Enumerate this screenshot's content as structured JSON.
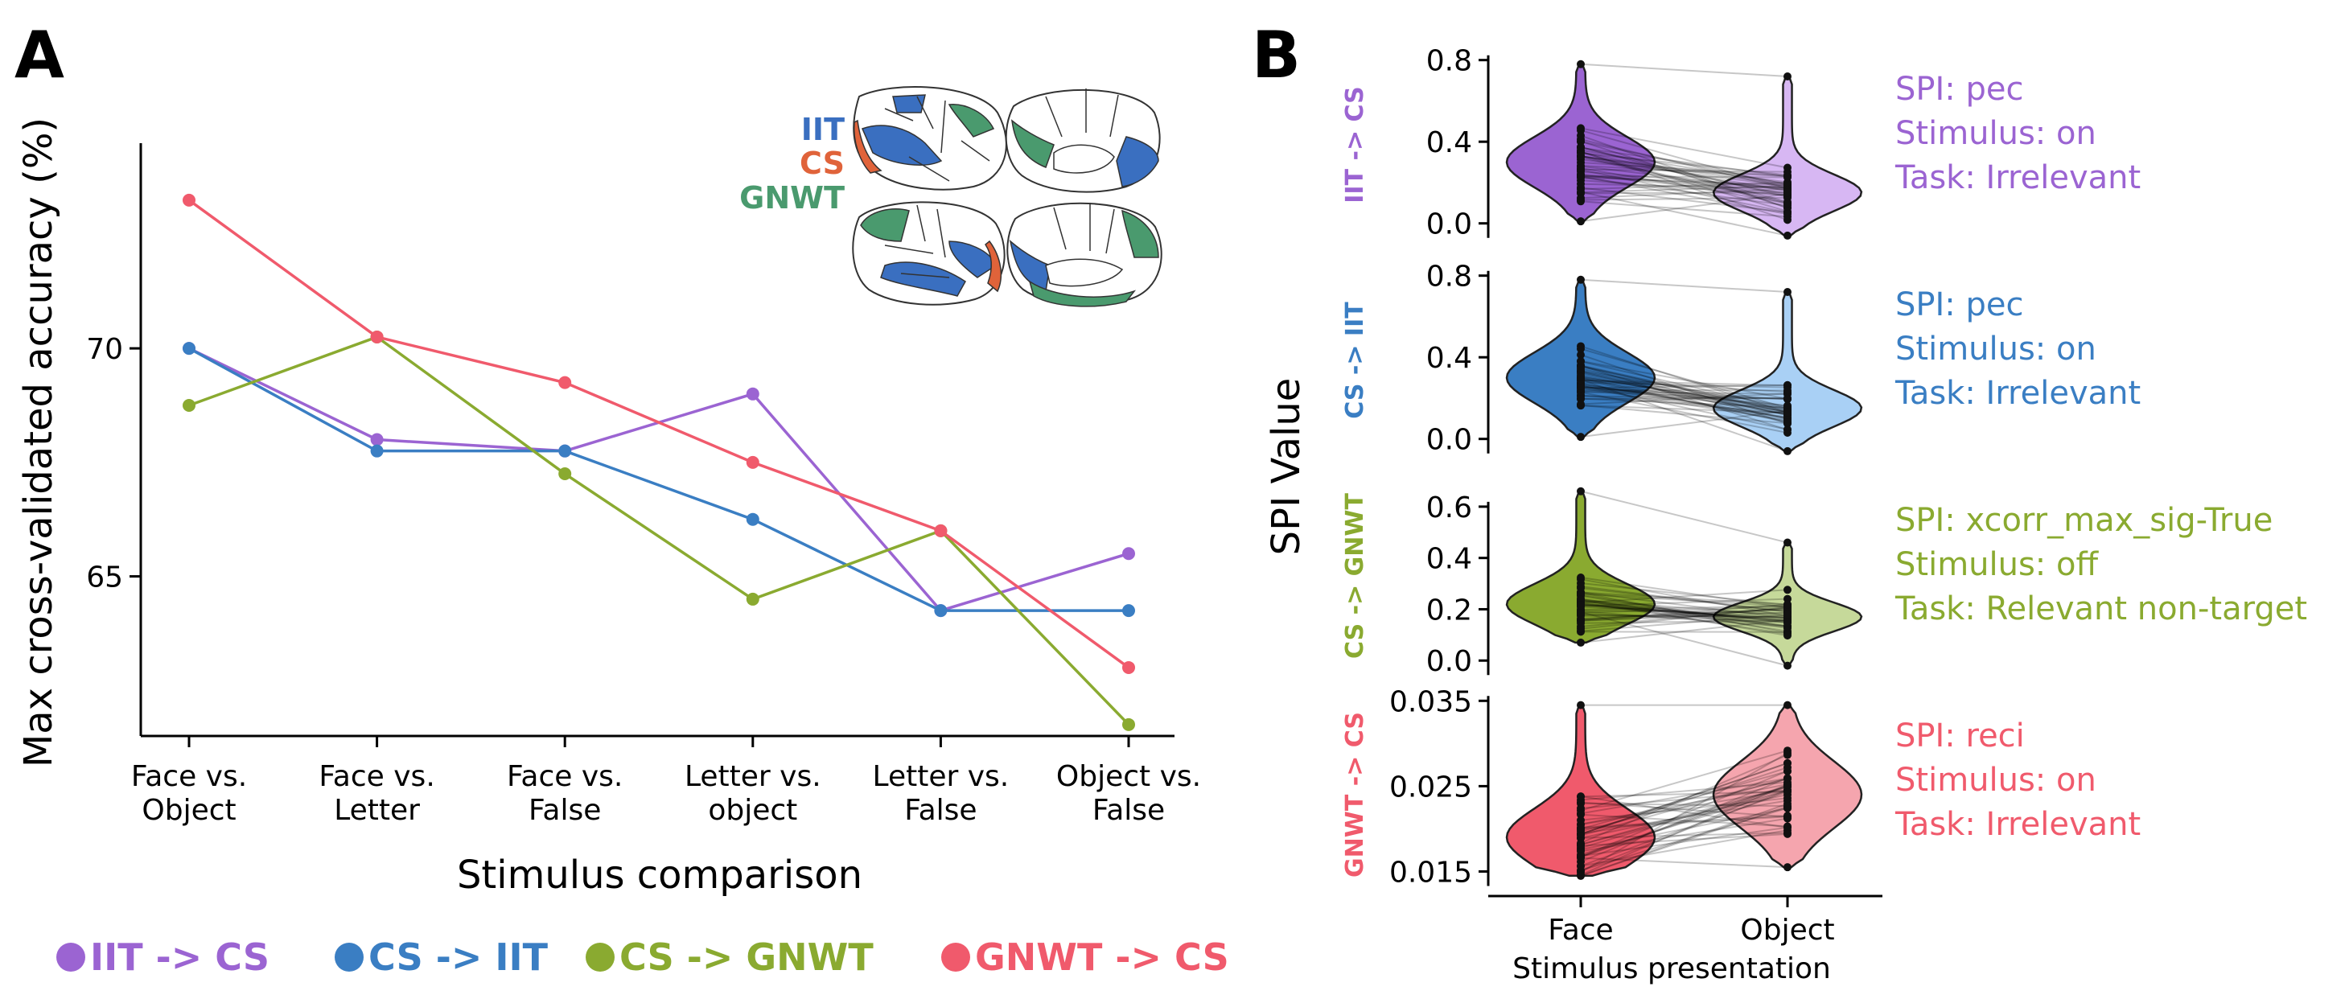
{
  "panels": {
    "a": "A",
    "b": "B"
  },
  "colors": {
    "iit_cs": "#9b64d2",
    "cs_iit": "#3a7ec3",
    "cs_gnwt": "#8aaa30",
    "gnwt_cs": "#f05a6c"
  },
  "brain_legend": [
    {
      "label": "IIT",
      "color": "#3a6fc0"
    },
    {
      "label": "CS",
      "color": "#e0633a"
    },
    {
      "label": "GNWT",
      "color": "#4a9a6e"
    }
  ],
  "chart_data": [
    {
      "type": "line",
      "panel": "A",
      "xlabel": "Stimulus comparison",
      "ylabel": "Max cross-validated accuracy (%)",
      "categories": [
        [
          "Face vs.",
          "Object"
        ],
        [
          "Face vs.",
          "Letter"
        ],
        [
          "Face vs.",
          "False"
        ],
        [
          "Letter vs.",
          "object"
        ],
        [
          "Letter vs.",
          "False"
        ],
        [
          "Object vs.",
          "False"
        ]
      ],
      "ylim": [
        61.5,
        74.5
      ],
      "yticks": [
        65,
        70
      ],
      "series": [
        {
          "name": "IIT -> CS",
          "color": "#9b64d2",
          "values": [
            70.0,
            68.0,
            67.75,
            69.0,
            64.25,
            65.5
          ]
        },
        {
          "name": "CS -> IIT",
          "color": "#3a7ec3",
          "values": [
            70.0,
            67.75,
            67.75,
            66.25,
            64.25,
            64.25
          ]
        },
        {
          "name": "CS -> GNWT",
          "color": "#8aaa30",
          "values": [
            68.75,
            70.25,
            67.25,
            64.5,
            66.0,
            61.75
          ]
        },
        {
          "name": "GNWT -> CS",
          "color": "#f05a6c",
          "values": [
            73.25,
            70.25,
            69.25,
            67.5,
            66.0,
            63.0
          ]
        }
      ],
      "legend": [
        "IIT -> CS",
        "CS -> IIT",
        "CS -> GNWT",
        "GNWT -> CS"
      ],
      "legend_position": "bottom"
    },
    {
      "type": "violin",
      "panel": "B",
      "ylabel": "SPI Value",
      "xlabel": "Stimulus presentation",
      "categories": [
        "Face",
        "Object"
      ],
      "rows": [
        {
          "name": "IIT -> CS",
          "color": "#9b64d2",
          "light": "#d7b7f3",
          "ylim": [
            -0.08,
            0.85
          ],
          "yticks": [
            "0.0",
            "0.4",
            "0.8"
          ],
          "ytick_values": [
            0.0,
            0.4,
            0.8
          ],
          "face": {
            "min": 0.01,
            "max": 0.78,
            "peak": 0.3,
            "spread": 0.22
          },
          "object": {
            "min": -0.06,
            "max": 0.72,
            "peak": 0.15,
            "spread": 0.16
          },
          "info": [
            "SPI: pec",
            "Stimulus: on",
            "Task: Irrelevant"
          ]
        },
        {
          "name": "CS -> IIT",
          "color": "#3a7ec3",
          "light": "#a9d0f5",
          "ylim": [
            -0.08,
            0.85
          ],
          "yticks": [
            "0.0",
            "0.4",
            "0.8"
          ],
          "ytick_values": [
            0.0,
            0.4,
            0.8
          ],
          "face": {
            "min": 0.01,
            "max": 0.78,
            "peak": 0.3,
            "spread": 0.22
          },
          "object": {
            "min": -0.06,
            "max": 0.72,
            "peak": 0.15,
            "spread": 0.16
          },
          "info": [
            "SPI: pec",
            "Stimulus: on",
            "Task: Irrelevant"
          ]
        },
        {
          "name": "CS -> GNWT",
          "color": "#8aaa30",
          "light": "#c6d99a",
          "ylim": [
            -0.04,
            0.7
          ],
          "yticks": [
            "0.0",
            "0.2",
            "0.4",
            "0.6"
          ],
          "ytick_values": [
            0.0,
            0.2,
            0.4,
            0.6
          ],
          "face": {
            "min": 0.07,
            "max": 0.66,
            "peak": 0.22,
            "spread": 0.14
          },
          "object": {
            "min": -0.02,
            "max": 0.46,
            "peak": 0.17,
            "spread": 0.1
          },
          "info": [
            "SPI: xcorr_max_sig-True",
            "Stimulus: off",
            "Task: Relevant non-target"
          ]
        },
        {
          "name": "GNWT -> CS",
          "color": "#f05a6c",
          "light": "#f5a5ae",
          "ylim": [
            0.0125,
            0.0355
          ],
          "yticks": [
            "0.015",
            "0.025",
            "0.035"
          ],
          "ytick_values": [
            0.015,
            0.025,
            0.035
          ],
          "face": {
            "min": 0.0145,
            "max": 0.0345,
            "peak": 0.019,
            "spread": 0.006
          },
          "object": {
            "min": 0.0155,
            "max": 0.0345,
            "peak": 0.024,
            "spread": 0.007
          },
          "info": [
            "SPI: reci",
            "Stimulus: on",
            "Task: Irrelevant"
          ]
        }
      ]
    }
  ]
}
